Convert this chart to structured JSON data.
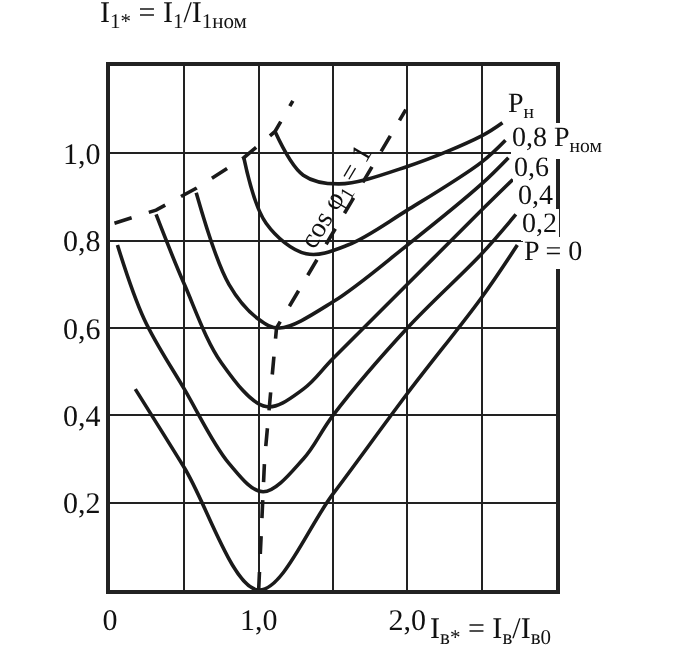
{
  "chart_data": {
    "type": "line",
    "ylabel": "I$_{1*}$ = I$_{1}$/I$_{1ном}$",
    "xlabel": "I$_{в*}$ = I$_{в}$/I$_{в0}$",
    "xlim": [
      0,
      3.0
    ],
    "ylim": [
      0,
      1.2
    ],
    "xticks": [
      0,
      {
        "value": 0.5,
        "label": null
      },
      {
        "value": 1.0,
        "label": "1,0"
      },
      {
        "value": 1.5,
        "label": null
      },
      {
        "value": 2.0,
        "label": "2,0"
      },
      {
        "value": 2.5,
        "label": null
      },
      {
        "value": 3.0,
        "label": null
      }
    ],
    "yticks": [
      {
        "value": 0,
        "label": null
      },
      {
        "value": 0.2,
        "label": "0,2"
      },
      {
        "value": 0.4,
        "label": "0,4"
      },
      {
        "value": 0.6,
        "label": "0,6"
      },
      {
        "value": 0.8,
        "label": "0,8"
      },
      {
        "value": 1.0,
        "label": "1,0"
      },
      {
        "value": 1.2,
        "label": null
      }
    ],
    "grid": true,
    "legend": false,
    "marker": "none",
    "series": [
      {
        "name": "P$_{н}$",
        "color": "#1a1a1a",
        "line_style": "solid",
        "x": [
          1.11,
          1.3,
          1.54,
          2.0,
          2.5,
          2.64
        ],
        "values": [
          1.05,
          0.95,
          0.93,
          0.97,
          1.04,
          1.07
        ]
      },
      {
        "name": "0,8 P$_{ном}$",
        "color": "#1a1a1a",
        "line_style": "solid",
        "x": [
          0.9,
          1.05,
          1.32,
          1.6,
          2.0,
          2.5,
          2.66
        ],
        "values": [
          0.99,
          0.84,
          0.77,
          0.79,
          0.87,
          0.98,
          1.03
        ]
      },
      {
        "name": "0,6",
        "color": "#1a1a1a",
        "line_style": "solid",
        "x": [
          0.58,
          0.8,
          1.0,
          1.14,
          1.5,
          2.0,
          2.5,
          2.68
        ],
        "values": [
          0.91,
          0.7,
          0.62,
          0.6,
          0.66,
          0.79,
          0.93,
          0.99
        ]
      },
      {
        "name": "0,4",
        "color": "#1a1a1a",
        "line_style": "solid",
        "x": [
          0.31,
          0.5,
          0.75,
          1.05,
          1.3,
          1.5,
          2.0,
          2.5,
          2.71
        ],
        "values": [
          0.86,
          0.7,
          0.52,
          0.42,
          0.46,
          0.53,
          0.7,
          0.87,
          0.94
        ]
      },
      {
        "name": "0,2",
        "color": "#1a1a1a",
        "line_style": "solid",
        "x": [
          0.05,
          0.23,
          0.5,
          0.8,
          1.03,
          1.3,
          1.5,
          2.0,
          2.5,
          2.73
        ],
        "values": [
          0.79,
          0.62,
          0.46,
          0.29,
          0.225,
          0.3,
          0.4,
          0.6,
          0.77,
          0.86
        ]
      },
      {
        "name": "P = 0",
        "color": "#1a1a1a",
        "line_style": "solid",
        "x": [
          0.17,
          0.5,
          1.0,
          1.5,
          2.0,
          2.5,
          2.74
        ],
        "values": [
          0.46,
          0.28,
          0.0,
          0.22,
          0.45,
          0.67,
          0.79
        ]
      },
      {
        "name": "cos φ$_{1}$ = 1",
        "color": "#1a1a1a",
        "line_style": "dashed",
        "x": [
          1.0,
          1.04,
          1.12,
          1.99
        ],
        "values": [
          0.0,
          0.3,
          0.6,
          1.1
        ]
      },
      {
        "color": "#1a1a1a",
        "line_style": "dashed",
        "x": [
          0.03,
          0.31,
          0.58,
          0.9,
          1.11,
          1.23
        ],
        "values": [
          0.84,
          0.87,
          0.92,
          0.99,
          1.05,
          1.12
        ]
      }
    ]
  }
}
